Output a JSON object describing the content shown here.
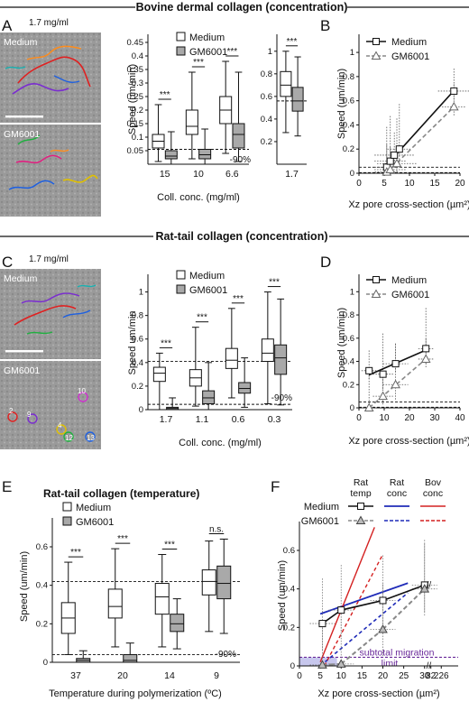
{
  "section_titles": {
    "bovine": "Bovine dermal collagen (concentration)",
    "rat_conc": "Rat-tail collagen (concentration)",
    "rat_temp": "Rat-tail collagen (temperature)"
  },
  "panel_letters": [
    "A",
    "B",
    "C",
    "D",
    "E",
    "F"
  ],
  "micrographs": {
    "A": {
      "conc_label": "1.7 mg/ml",
      "top_label": "Medium",
      "bottom_label": "GM6001"
    },
    "C": {
      "conc_label": "1.7 mg/ml",
      "top_label": "Medium",
      "bottom_label": "GM6001",
      "track_numbers": [
        "10",
        "2",
        "9",
        "4",
        "12",
        "13"
      ]
    }
  },
  "legend": {
    "medium": "Medium",
    "gm6001": "GM6001"
  },
  "colors": {
    "medium_box": "#ffffff",
    "gm6001_box": "#a9a9a9",
    "rat_conc": "#1f2bb8",
    "bov_conc": "#d42020",
    "subtotal": "#6a2a9a",
    "shade": "#b9b9e8"
  },
  "chart_data": [
    {
      "id": "A-box",
      "type": "box",
      "ylabel": "Speed (um/min)",
      "xlabel": "Coll. conc. (mg/ml)",
      "categories": [
        "15",
        "10",
        "6.6"
      ],
      "yticks": [
        "0.05",
        "0.1",
        "0.15",
        "0.2",
        "0.25",
        "0.3",
        "0.35",
        "0.4",
        "0.45"
      ],
      "ylim": [
        0,
        0.48
      ],
      "series": [
        {
          "name": "Medium",
          "boxes": [
            {
              "min": 0.01,
              "q1": 0.06,
              "median": 0.085,
              "q3": 0.11,
              "max": 0.22
            },
            {
              "min": 0.02,
              "q1": 0.11,
              "median": 0.14,
              "q3": 0.2,
              "max": 0.34
            },
            {
              "min": 0.04,
              "q1": 0.15,
              "median": 0.2,
              "q3": 0.25,
              "max": 0.38
            }
          ]
        },
        {
          "name": "GM6001",
          "boxes": [
            {
              "min": 0.0,
              "q1": 0.02,
              "median": 0.03,
              "q3": 0.05,
              "max": 0.12
            },
            {
              "min": 0.0,
              "q1": 0.02,
              "median": 0.035,
              "q3": 0.055,
              "max": 0.13
            },
            {
              "min": 0.01,
              "q1": 0.06,
              "median": 0.11,
              "q3": 0.15,
              "max": 0.34
            }
          ]
        }
      ],
      "significance": [
        "***",
        "***",
        "***"
      ],
      "reference_line": 0.055,
      "reference_label": "-90%"
    },
    {
      "id": "A-box-1.7",
      "type": "box",
      "categories": [
        "1.7"
      ],
      "yticks": [
        "0.2",
        "0.4",
        "0.6",
        "0.8",
        "1"
      ],
      "ylim": [
        0,
        1.15
      ],
      "series": [
        {
          "name": "Medium",
          "boxes": [
            {
              "min": 0.28,
              "q1": 0.6,
              "median": 0.7,
              "q3": 0.82,
              "max": 1.0
            }
          ]
        },
        {
          "name": "GM6001",
          "boxes": [
            {
              "min": 0.25,
              "q1": 0.47,
              "median": 0.56,
              "q3": 0.68,
              "max": 0.95
            }
          ]
        }
      ],
      "significance": [
        "***"
      ],
      "reference_line": 0.56
    },
    {
      "id": "B",
      "type": "scatter",
      "xlabel": "Xz pore cross-section (µm²)",
      "ylabel": "Speed (um/min)",
      "xticks": [
        "0",
        "5",
        "10",
        "15",
        "20"
      ],
      "yticks": [
        "0",
        "0.2",
        "0.4",
        "0.6",
        "0.8",
        "1"
      ],
      "xlim": [
        0,
        20
      ],
      "ylim": [
        0,
        1.15
      ],
      "series": [
        {
          "name": "Medium",
          "x": [
            5.5,
            6.2,
            7.0,
            8.0,
            18.8
          ],
          "y": [
            0.05,
            0.1,
            0.15,
            0.2,
            0.68
          ]
        },
        {
          "name": "GM6001",
          "x": [
            5.5,
            6.2,
            7.5,
            18.8
          ],
          "y": [
            0.01,
            0.03,
            0.08,
            0.55
          ]
        }
      ],
      "reference_lines": [
        0.05,
        0.005
      ]
    },
    {
      "id": "C-box",
      "type": "box",
      "ylabel": "Speed um/min",
      "xlabel": "Coll. conc. (mg/ml)",
      "categories": [
        "1.7",
        "1.1",
        "0.6",
        "0.3"
      ],
      "yticks": [
        "0",
        "0.2",
        "0.4",
        "0.6",
        "0.8",
        "1"
      ],
      "ylim": [
        0,
        1.15
      ],
      "series": [
        {
          "name": "Medium",
          "boxes": [
            {
              "min": 0.0,
              "q1": 0.24,
              "median": 0.31,
              "q3": 0.36,
              "max": 0.48
            },
            {
              "min": 0.03,
              "q1": 0.2,
              "median": 0.27,
              "q3": 0.34,
              "max": 0.7
            },
            {
              "min": 0.1,
              "q1": 0.35,
              "median": 0.42,
              "q3": 0.52,
              "max": 0.86
            },
            {
              "min": 0.05,
              "q1": 0.41,
              "median": 0.48,
              "q3": 0.6,
              "max": 1.0
            }
          ]
        },
        {
          "name": "GM6001",
          "boxes": [
            {
              "min": 0.0,
              "q1": 0.0,
              "median": 0.01,
              "q3": 0.02,
              "max": 0.1
            },
            {
              "min": 0.0,
              "q1": 0.05,
              "median": 0.1,
              "q3": 0.16,
              "max": 0.4
            },
            {
              "min": 0.02,
              "q1": 0.14,
              "median": 0.18,
              "q3": 0.23,
              "max": 0.44
            },
            {
              "min": 0.04,
              "q1": 0.3,
              "median": 0.44,
              "q3": 0.55,
              "max": 0.94
            }
          ]
        }
      ],
      "significance": [
        "***",
        "***",
        "***",
        "***"
      ],
      "reference_line": 0.41,
      "reference_line_low": 0.045,
      "reference_label": "-90%"
    },
    {
      "id": "D",
      "type": "scatter",
      "xlabel": "Xz pore cross-section (µm²)",
      "ylabel": "Speed (um/min)",
      "xticks": [
        "0",
        "10",
        "20",
        "30",
        "40"
      ],
      "yticks": [
        "0",
        "0.2",
        "0.4",
        "0.6",
        "0.8",
        "1"
      ],
      "xlim": [
        0,
        40
      ],
      "ylim": [
        0,
        1.15
      ],
      "series": [
        {
          "name": "Medium",
          "x": [
            4,
            9.5,
            14.5,
            26.5
          ],
          "y": [
            0.32,
            0.29,
            0.38,
            0.51
          ]
        },
        {
          "name": "GM6001",
          "x": [
            4,
            9.5,
            14.5,
            26.5
          ],
          "y": [
            0.0,
            0.1,
            0.2,
            0.42
          ]
        }
      ],
      "reference_lines": [
        0.05,
        0.005
      ]
    },
    {
      "id": "E",
      "type": "box",
      "ylabel": "Speed (um/min)",
      "xlabel": "Temperature during polymerization (ºC)",
      "categories": [
        "37",
        "20",
        "14",
        "9"
      ],
      "yticks": [
        "0",
        "0.2",
        "0.4",
        "0.6"
      ],
      "ylim": [
        0,
        0.75
      ],
      "series": [
        {
          "name": "Medium",
          "boxes": [
            {
              "min": 0.04,
              "q1": 0.15,
              "median": 0.23,
              "q3": 0.31,
              "max": 0.52
            },
            {
              "min": 0.08,
              "q1": 0.23,
              "median": 0.29,
              "q3": 0.38,
              "max": 0.59
            },
            {
              "min": 0.08,
              "q1": 0.25,
              "median": 0.34,
              "q3": 0.41,
              "max": 0.56
            },
            {
              "min": 0.16,
              "q1": 0.35,
              "median": 0.42,
              "q3": 0.48,
              "max": 0.63
            }
          ]
        },
        {
          "name": "GM6001",
          "boxes": [
            {
              "min": 0.0,
              "q1": 0.0,
              "median": 0.01,
              "q3": 0.02,
              "max": 0.06
            },
            {
              "min": 0.0,
              "q1": 0.0,
              "median": 0.01,
              "q3": 0.04,
              "max": 0.1
            },
            {
              "min": 0.07,
              "q1": 0.16,
              "median": 0.2,
              "q3": 0.25,
              "max": 0.33
            },
            {
              "min": 0.15,
              "q1": 0.33,
              "median": 0.41,
              "q3": 0.5,
              "max": 0.64
            }
          ]
        }
      ],
      "significance": [
        "***",
        "***",
        "***",
        "n.s."
      ],
      "reference_line": 0.42,
      "reference_line_low": 0.04,
      "reference_label": "-90%"
    },
    {
      "id": "F",
      "type": "scatter",
      "xlabel": "Xz pore cross-section (µm²)",
      "ylabel": "Speed (um/min)",
      "xticks": [
        "0",
        "5",
        "10",
        "15",
        "20",
        "25",
        "30",
        "82",
        "226"
      ],
      "yticks": [
        "0",
        "0.2",
        "0.4",
        "0.6"
      ],
      "ylim": [
        0,
        0.75
      ],
      "legend_columns": [
        "Rat temp",
        "Rat conc",
        "Bov conc"
      ],
      "series": [
        {
          "name": "Medium",
          "x": [
            5.5,
            10,
            20,
            30
          ],
          "y": [
            0.22,
            0.29,
            0.34,
            0.42
          ]
        },
        {
          "name": "GM6001",
          "x": [
            5.5,
            10,
            20,
            30
          ],
          "y": [
            0.005,
            0.01,
            0.19,
            0.4
          ]
        }
      ],
      "annotation": "subtotal migration limit"
    }
  ]
}
